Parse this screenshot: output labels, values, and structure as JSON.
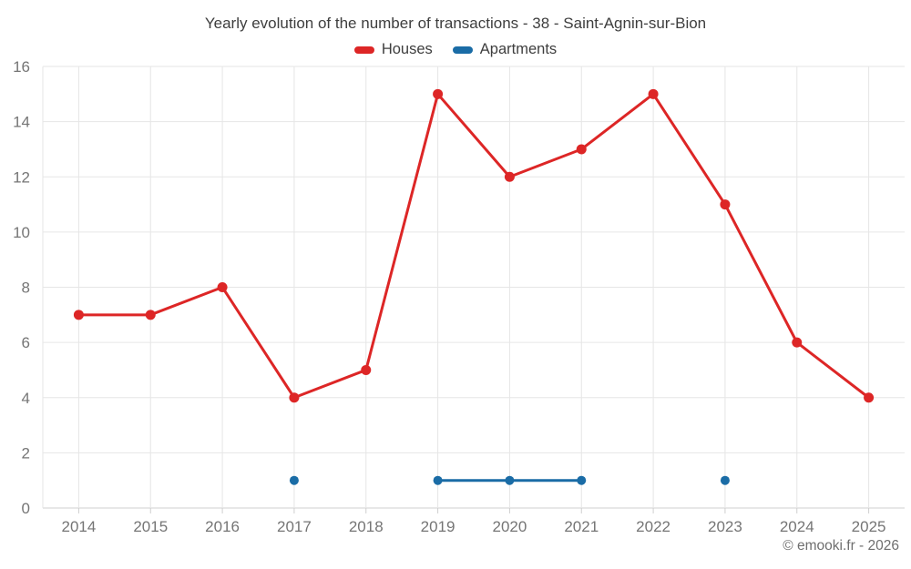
{
  "footer": {
    "copyright": "© emooki.fr - 2026"
  },
  "chart_data": {
    "type": "line",
    "title": "Yearly evolution of the number of transactions - 38 - Saint-Agnin-sur-Bion",
    "xlabel": "",
    "ylabel": "",
    "categories": [
      "2014",
      "2015",
      "2016",
      "2017",
      "2018",
      "2019",
      "2020",
      "2021",
      "2022",
      "2023",
      "2024",
      "2025"
    ],
    "series": [
      {
        "name": "Houses",
        "color": "#dd2626",
        "values": [
          7,
          7,
          8,
          4,
          5,
          15,
          12,
          13,
          15,
          11,
          6,
          4
        ]
      },
      {
        "name": "Apartments",
        "color": "#1a6ca6",
        "values": [
          null,
          null,
          null,
          1,
          null,
          1,
          1,
          1,
          null,
          1,
          null,
          null
        ]
      }
    ],
    "ylim": [
      0,
      16
    ],
    "y_ticks": [
      0,
      2,
      4,
      6,
      8,
      10,
      12,
      14,
      16
    ],
    "grid": true,
    "legend_position": "top",
    "colors": {
      "gridline": "#e6e6e6",
      "axis_line": "#cfcfcf",
      "tick_label": "#757575",
      "title_text": "#3e3e3e"
    }
  }
}
